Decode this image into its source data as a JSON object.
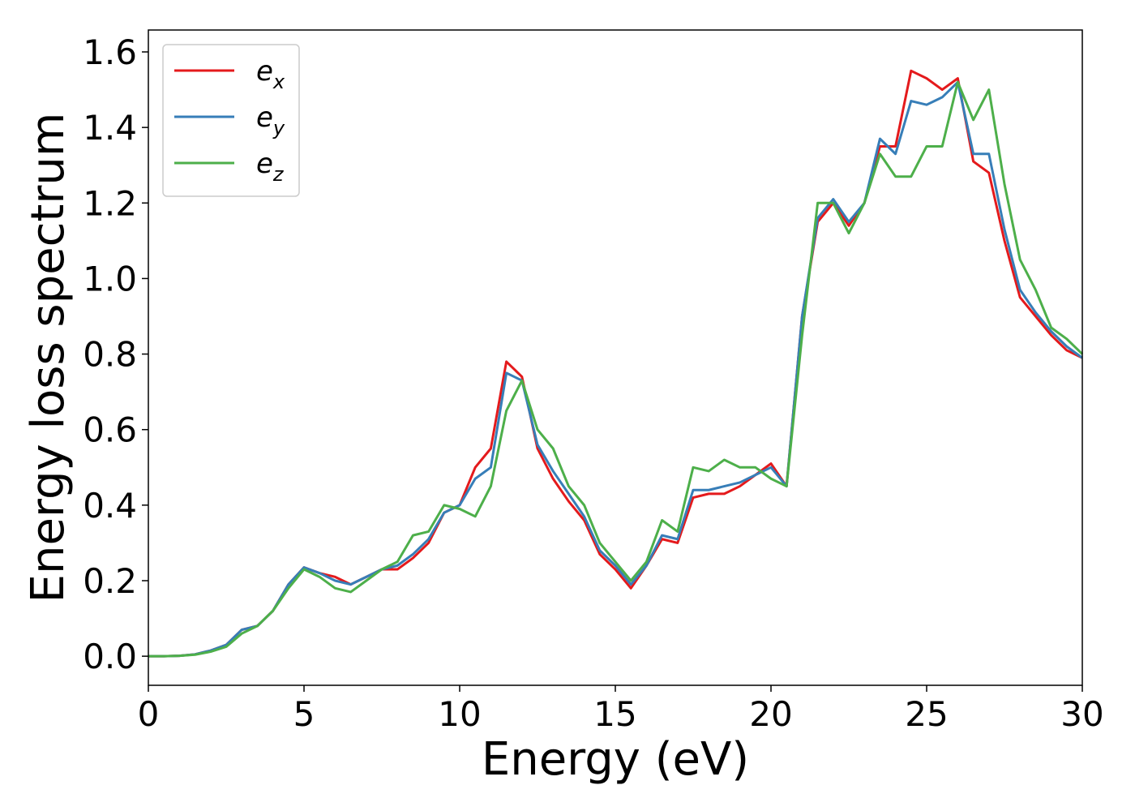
{
  "chart_data": {
    "type": "line",
    "x_label": "Energy (eV)",
    "y_label": "Energy loss spectrum",
    "x": [
      0,
      0.5,
      1,
      1.5,
      2,
      2.5,
      3,
      3.5,
      4,
      4.5,
      5,
      5.5,
      6,
      6.5,
      7,
      7.5,
      8,
      8.5,
      9,
      9.5,
      10,
      10.5,
      11,
      11.5,
      12,
      12.5,
      13,
      13.5,
      14,
      14.5,
      15,
      15.5,
      16,
      16.5,
      17,
      17.5,
      18,
      18.5,
      19,
      19.5,
      20,
      20.5,
      21,
      21.5,
      22,
      22.5,
      23,
      23.5,
      24,
      24.5,
      25,
      25.5,
      26,
      26.5,
      27,
      27.5,
      28,
      28.5,
      29,
      29.5,
      30
    ],
    "series": [
      {
        "name": "e_x",
        "color": "#e41a1c",
        "values": [
          0,
          0,
          0.001,
          0.005,
          0.015,
          0.03,
          0.07,
          0.08,
          0.12,
          0.19,
          0.235,
          0.22,
          0.21,
          0.19,
          0.21,
          0.23,
          0.23,
          0.26,
          0.3,
          0.38,
          0.4,
          0.5,
          0.55,
          0.78,
          0.74,
          0.55,
          0.47,
          0.41,
          0.36,
          0.27,
          0.23,
          0.18,
          0.24,
          0.31,
          0.3,
          0.42,
          0.43,
          0.43,
          0.45,
          0.48,
          0.51,
          0.45,
          0.9,
          1.15,
          1.2,
          1.14,
          1.2,
          1.35,
          1.35,
          1.55,
          1.53,
          1.5,
          1.53,
          1.31,
          1.28,
          1.1,
          0.95,
          0.9,
          0.85,
          0.81,
          0.79
        ]
      },
      {
        "name": "e_y",
        "color": "#377eb8",
        "values": [
          0,
          0,
          0.001,
          0.005,
          0.015,
          0.03,
          0.07,
          0.08,
          0.12,
          0.19,
          0.235,
          0.22,
          0.2,
          0.19,
          0.21,
          0.23,
          0.24,
          0.27,
          0.31,
          0.38,
          0.4,
          0.47,
          0.5,
          0.75,
          0.73,
          0.56,
          0.49,
          0.43,
          0.37,
          0.28,
          0.24,
          0.19,
          0.24,
          0.32,
          0.31,
          0.44,
          0.44,
          0.45,
          0.46,
          0.48,
          0.5,
          0.45,
          0.9,
          1.16,
          1.21,
          1.15,
          1.2,
          1.37,
          1.33,
          1.47,
          1.46,
          1.48,
          1.52,
          1.33,
          1.33,
          1.13,
          0.97,
          0.91,
          0.86,
          0.82,
          0.79
        ]
      },
      {
        "name": "e_z",
        "color": "#4daf4a",
        "values": [
          0,
          0,
          0.001,
          0.004,
          0.012,
          0.025,
          0.06,
          0.08,
          0.12,
          0.18,
          0.23,
          0.21,
          0.18,
          0.17,
          0.2,
          0.23,
          0.25,
          0.32,
          0.33,
          0.4,
          0.39,
          0.37,
          0.45,
          0.65,
          0.73,
          0.6,
          0.55,
          0.45,
          0.4,
          0.3,
          0.25,
          0.2,
          0.25,
          0.36,
          0.33,
          0.5,
          0.49,
          0.52,
          0.5,
          0.5,
          0.47,
          0.45,
          0.85,
          1.2,
          1.2,
          1.12,
          1.2,
          1.33,
          1.27,
          1.27,
          1.35,
          1.35,
          1.52,
          1.42,
          1.5,
          1.25,
          1.05,
          0.97,
          0.87,
          0.84,
          0.8
        ]
      }
    ],
    "xlim": [
      0,
      30
    ],
    "xticks": [
      0,
      5,
      10,
      15,
      20,
      25,
      30
    ],
    "ylim": [
      -0.077,
      1.658
    ],
    "yticks": [
      {
        "value": 0,
        "label": "0.0"
      },
      {
        "value": 0.2,
        "label": "0.2"
      },
      {
        "value": 0.4,
        "label": "0.4"
      },
      {
        "value": 0.6,
        "label": "0.6"
      },
      {
        "value": 0.8,
        "label": "0.8"
      },
      {
        "value": 1,
        "label": "1.0"
      },
      {
        "value": 1.2,
        "label": "1.2"
      },
      {
        "value": 1.4,
        "label": "1.4"
      },
      {
        "value": 1.6,
        "label": "1.6"
      }
    ],
    "legend": "upper left"
  }
}
